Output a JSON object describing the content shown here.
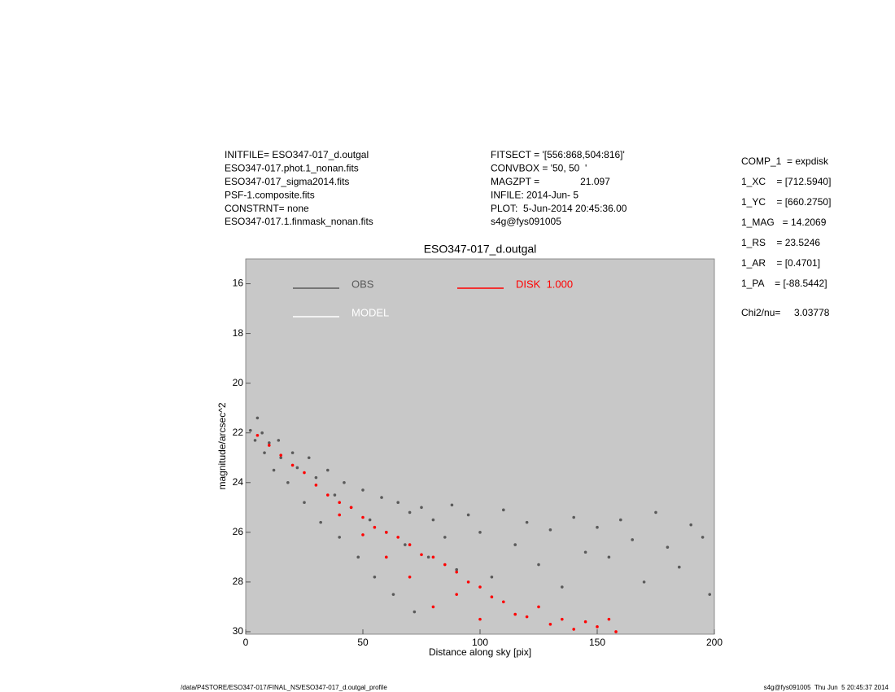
{
  "header": {
    "left": [
      "INITFILE= ESO347-017_d.outgal",
      "ESO347-017.phot.1_nonan.fits",
      "ESO347-017_sigma2014.fits",
      "PSF-1.composite.fits",
      "CONSTRNT= none",
      "ESO347-017.1.finmask_nonan.fits"
    ],
    "middle": [
      "FITSECT = '[556:868,504:816]'",
      "CONVBOX = '50, 50  '",
      "MAGZPT =               21.097",
      "INFILE: 2014-Jun- 5",
      "PLOT:  5-Jun-2014 20:45:36.00",
      "s4g@fys091005"
    ],
    "right": [
      "COMP_1  = expdisk",
      "1_XC    = [712.5940]",
      "1_YC    = [660.2750]",
      "1_MAG   = 14.2069",
      "1_RS    = 23.5246",
      "1_AR    = [0.4701]",
      "1_PA    = [-88.5442]"
    ],
    "chi2": "Chi2/nu=     3.03778"
  },
  "footer": {
    "left": "/data/P4STORE/ESO347-017/FINAL_NS/ESO347-017_d.outgal_profile",
    "right": "s4g@fys091005  Thu Jun  5 20:45:37 2014"
  },
  "chart_data": {
    "type": "scatter",
    "title": "ESO347-017_d.outgal",
    "x_label": "Distance along sky [pix]",
    "y_label": "magnitude/arcsec^2",
    "xlim": [
      0,
      200
    ],
    "ylim": [
      30.1,
      15
    ],
    "xticks": [
      0,
      50,
      100,
      150,
      200
    ],
    "yticks": [
      16,
      18,
      20,
      22,
      24,
      26,
      28,
      30
    ],
    "background": "#c8c8c8",
    "series": [
      {
        "name": "OBS",
        "color": "#5a5a5a",
        "x": [
          2,
          4,
          5,
          7,
          8,
          10,
          12,
          14,
          15,
          18,
          20,
          22,
          25,
          27,
          30,
          32,
          35,
          38,
          40,
          42,
          45,
          48,
          50,
          53,
          55,
          58,
          60,
          63,
          65,
          68,
          70,
          72,
          75,
          78,
          80,
          85,
          88,
          90,
          95,
          100,
          105,
          110,
          115,
          120,
          125,
          130,
          135,
          140,
          145,
          150,
          155,
          160,
          165,
          170,
          175,
          180,
          185,
          190,
          195,
          198
        ],
        "values": [
          21.9,
          22.3,
          21.4,
          22.0,
          22.8,
          22.4,
          23.5,
          22.3,
          23.0,
          24.0,
          22.8,
          23.4,
          24.8,
          23.0,
          23.8,
          25.6,
          23.5,
          24.5,
          26.2,
          24.0,
          25.0,
          27.0,
          24.3,
          25.5,
          27.8,
          24.6,
          26.0,
          28.5,
          24.8,
          26.5,
          25.2,
          29.2,
          25.0,
          27.0,
          25.5,
          26.2,
          24.9,
          27.5,
          25.3,
          26.0,
          27.8,
          25.1,
          26.5,
          25.6,
          27.3,
          25.9,
          28.2,
          25.4,
          26.8,
          25.8,
          27.0,
          25.5,
          26.3,
          28.0,
          25.2,
          26.6,
          27.4,
          25.7,
          26.2,
          28.5
        ]
      },
      {
        "name": "MODEL",
        "color": "#ffffff",
        "x": [],
        "values": []
      },
      {
        "name": "DISK  1.000",
        "color": "#ff0000",
        "x": [
          5,
          10,
          15,
          20,
          25,
          30,
          35,
          40,
          40,
          45,
          50,
          50,
          55,
          60,
          60,
          65,
          70,
          70,
          75,
          80,
          80,
          85,
          90,
          90,
          95,
          100,
          100,
          105,
          110,
          115,
          120,
          125,
          130,
          135,
          140,
          145,
          150,
          155,
          158
        ],
        "values": [
          22.1,
          22.5,
          22.9,
          23.3,
          23.6,
          24.1,
          24.5,
          24.8,
          25.3,
          25.0,
          25.4,
          26.1,
          25.8,
          26.0,
          27.0,
          26.2,
          26.5,
          27.8,
          26.9,
          27.0,
          29.0,
          27.3,
          27.6,
          28.5,
          28.0,
          28.2,
          29.5,
          28.6,
          28.8,
          29.3,
          29.4,
          29.0,
          29.7,
          29.5,
          29.9,
          29.6,
          29.8,
          29.5,
          30.0
        ]
      }
    ]
  }
}
